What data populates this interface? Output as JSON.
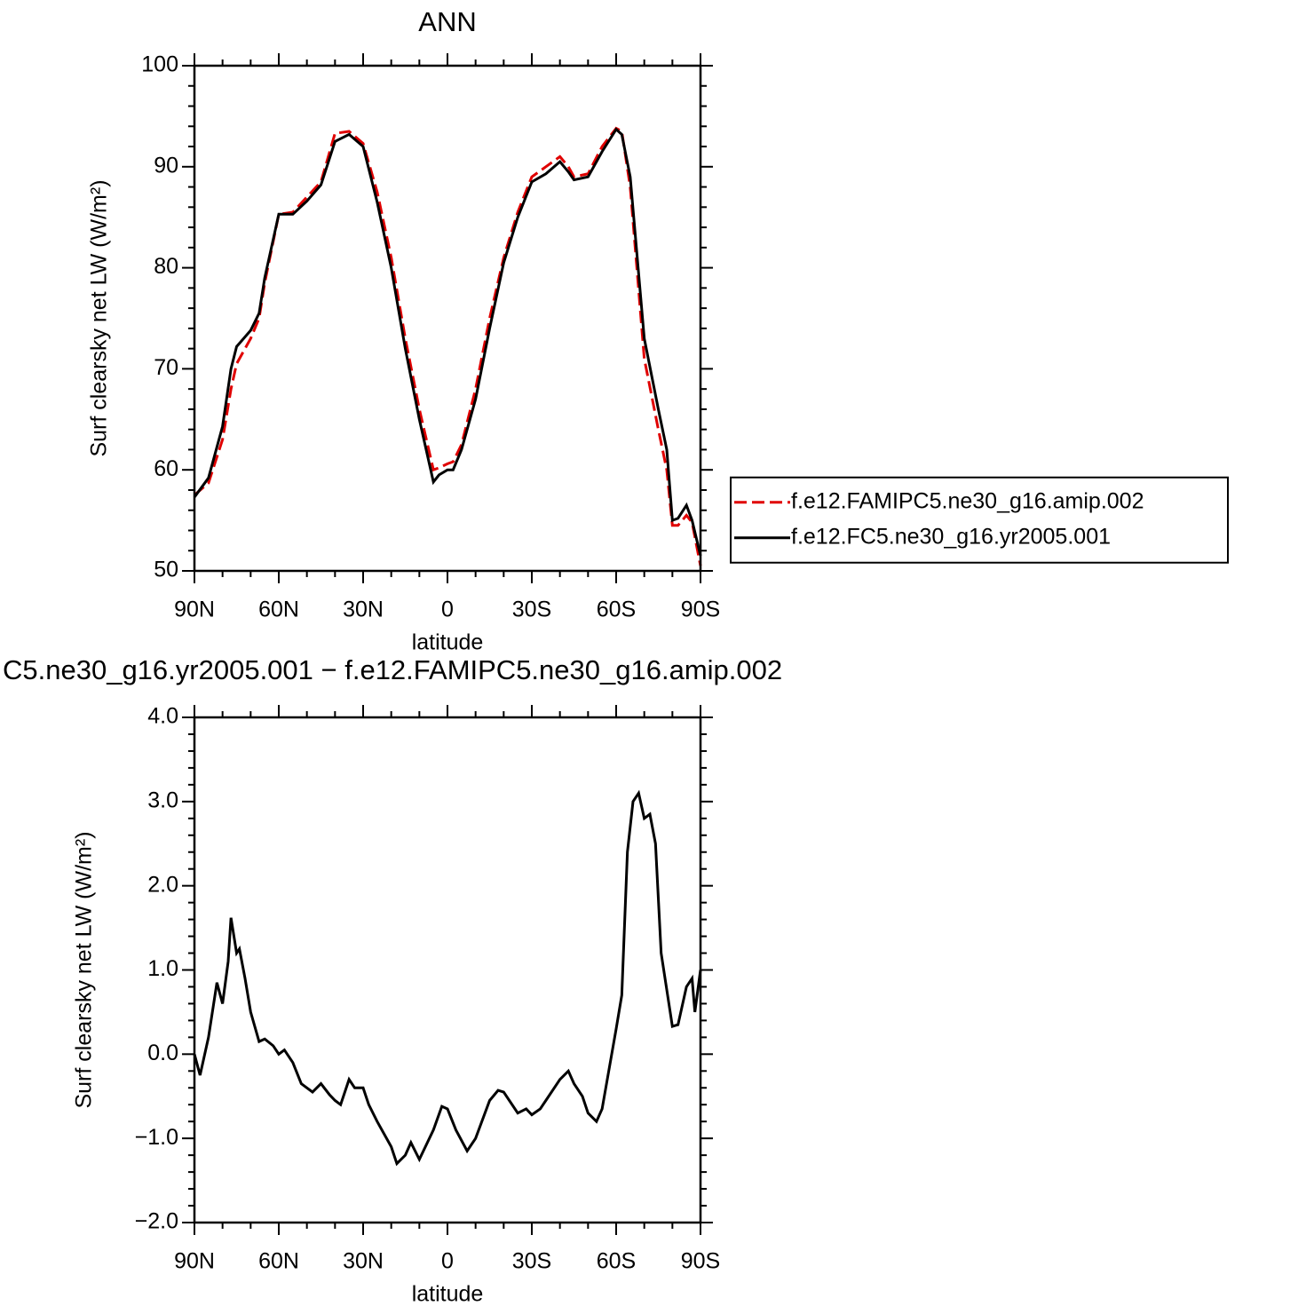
{
  "chart_data": [
    {
      "type": "line",
      "title": "ANN",
      "xlabel": "latitude",
      "ylabel": "Surf clearsky net LW (W/m²)",
      "x": [
        90,
        85,
        80,
        77,
        75,
        70,
        67,
        65,
        60,
        55,
        50,
        45,
        40,
        35,
        30,
        25,
        20,
        15,
        10,
        5,
        3,
        0,
        -2,
        -5,
        -10,
        -15,
        -20,
        -25,
        -30,
        -35,
        -40,
        -43,
        -45,
        -50,
        -55,
        -60,
        -62,
        -65,
        -70,
        -75,
        -78,
        -80,
        -82,
        -85,
        -87,
        -90
      ],
      "series": [
        {
          "name": "f.e12.FAMIPC5.ne30_g16.amip.002",
          "color": "#e00000",
          "dash": "dashed",
          "values": [
            57.5,
            58.7,
            63,
            68,
            70.5,
            73,
            75,
            78.5,
            85.3,
            85.5,
            87,
            88.5,
            93.3,
            93.5,
            92.3,
            87.5,
            81,
            73,
            66,
            60,
            60.2,
            60.6,
            60.8,
            62.5,
            68,
            75,
            81,
            85.5,
            89,
            90,
            91,
            90,
            89,
            89.3,
            92,
            93.8,
            93.5,
            88,
            71,
            64,
            60,
            54.5,
            54.5,
            55.5,
            54.8,
            50.5
          ]
        },
        {
          "name": "f.e12.FC5.ne30_g16.yr2005.001",
          "color": "#000000",
          "dash": "solid",
          "values": [
            57.3,
            59.2,
            64.3,
            70,
            72.2,
            73.8,
            75.5,
            79,
            85.3,
            85.3,
            86.6,
            88.2,
            92.5,
            93.2,
            92,
            86.5,
            80,
            72,
            65,
            58.8,
            59.5,
            60,
            60,
            62,
            67,
            74,
            80.5,
            85,
            88.5,
            89.3,
            90.5,
            89.5,
            88.7,
            89,
            91.5,
            93.7,
            93.2,
            89,
            73,
            66,
            62,
            55,
            55.2,
            56.5,
            55,
            51.5
          ]
        }
      ],
      "xlim": [
        90,
        -90
      ],
      "xticks": [
        {
          "value": 90,
          "label": "90N"
        },
        {
          "value": 60,
          "label": "60N"
        },
        {
          "value": 30,
          "label": "30N"
        },
        0,
        {
          "value": -30,
          "label": "30S"
        },
        {
          "value": -60,
          "label": "60S"
        },
        {
          "value": -90,
          "label": "90S"
        }
      ],
      "ylim": [
        50,
        100
      ],
      "yticks": [
        50,
        60,
        70,
        80,
        90,
        100
      ],
      "legend": "right"
    },
    {
      "type": "line",
      "title": "C5.ne30_g16.yr2005.001 − f.e12.FAMIPC5.ne30_g16.amip.002",
      "xlabel": "latitude",
      "ylabel": "Surf clearsky net LW (W/m²)",
      "x": [
        90,
        88,
        85,
        82,
        80,
        78,
        77,
        75,
        74,
        72,
        70,
        67,
        65,
        62,
        60,
        58,
        55,
        52,
        50,
        48,
        45,
        42,
        40,
        38,
        35,
        33,
        30,
        28,
        25,
        20,
        18,
        15,
        13,
        10,
        5,
        2,
        0,
        -3,
        -7,
        -10,
        -15,
        -18,
        -20,
        -25,
        -28,
        -30,
        -33,
        -35,
        -40,
        -43,
        -45,
        -48,
        -50,
        -53,
        -55,
        -60,
        -62,
        -64,
        -66,
        -68,
        -70,
        -72,
        -74,
        -76,
        -80,
        -82,
        -85,
        -87,
        -88,
        -90
      ],
      "series": [
        {
          "color": "#000000",
          "dash": "solid",
          "values": [
            0.0,
            -0.25,
            0.2,
            0.85,
            0.6,
            1.1,
            1.62,
            1.2,
            1.25,
            0.9,
            0.5,
            0.15,
            0.18,
            0.1,
            0.0,
            0.05,
            -0.1,
            -0.35,
            -0.4,
            -0.45,
            -0.35,
            -0.48,
            -0.55,
            -0.6,
            -0.3,
            -0.4,
            -0.4,
            -0.6,
            -0.8,
            -1.1,
            -1.3,
            -1.2,
            -1.05,
            -1.25,
            -0.9,
            -0.62,
            -0.65,
            -0.9,
            -1.15,
            -1.0,
            -0.55,
            -0.43,
            -0.45,
            -0.7,
            -0.65,
            -0.72,
            -0.65,
            -0.55,
            -0.3,
            -0.2,
            -0.35,
            -0.5,
            -0.7,
            -0.8,
            -0.65,
            0.3,
            0.7,
            2.4,
            3.0,
            3.1,
            2.8,
            2.85,
            2.5,
            1.2,
            0.33,
            0.35,
            0.8,
            0.9,
            0.5,
            1.0
          ]
        }
      ],
      "xlim": [
        90,
        -90
      ],
      "xticks": [
        {
          "value": 90,
          "label": "90N"
        },
        {
          "value": 60,
          "label": "60N"
        },
        {
          "value": 30,
          "label": "30N"
        },
        0,
        {
          "value": -30,
          "label": "30S"
        },
        {
          "value": -60,
          "label": "60S"
        },
        {
          "value": -90,
          "label": "90S"
        }
      ],
      "ylim": [
        -2,
        4
      ],
      "yticks": [
        {
          "value": -2,
          "label": "−2.0"
        },
        {
          "value": -1,
          "label": "−1.0"
        },
        {
          "value": 0,
          "label": "0.0"
        },
        {
          "value": 1,
          "label": "1.0"
        },
        {
          "value": 2,
          "label": "2.0"
        },
        {
          "value": 3,
          "label": "3.0"
        },
        {
          "value": 4,
          "label": "4.0"
        }
      ]
    }
  ]
}
